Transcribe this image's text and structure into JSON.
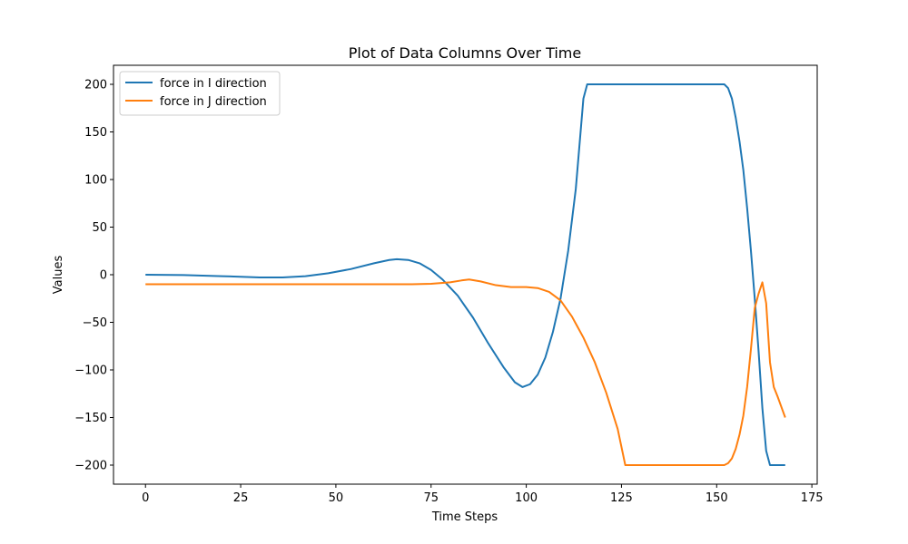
{
  "chart_data": {
    "type": "line",
    "title": "Plot of Data Columns Over Time",
    "xlabel": "Time Steps",
    "ylabel": "Values",
    "xlim": [
      -8.4,
      176.4
    ],
    "ylim": [
      -220,
      220
    ],
    "xticks": [
      0,
      25,
      50,
      75,
      100,
      125,
      150,
      175
    ],
    "yticks": [
      -200,
      -150,
      -100,
      -50,
      0,
      50,
      100,
      150,
      200
    ],
    "grid": false,
    "legend": "top-left",
    "series": [
      {
        "name": "force in I direction",
        "color": "#1f77b4",
        "points": [
          [
            0,
            0
          ],
          [
            10,
            -0.3
          ],
          [
            20,
            -1.5
          ],
          [
            30,
            -2.8
          ],
          [
            36,
            -2.8
          ],
          [
            42,
            -1.5
          ],
          [
            48,
            1.5
          ],
          [
            54,
            6
          ],
          [
            60,
            12
          ],
          [
            64,
            15.5
          ],
          [
            66,
            16.3
          ],
          [
            69,
            15.5
          ],
          [
            72,
            12
          ],
          [
            75,
            5
          ],
          [
            78,
            -5
          ],
          [
            82,
            -22
          ],
          [
            86,
            -45
          ],
          [
            90,
            -72
          ],
          [
            94,
            -97
          ],
          [
            97,
            -113
          ],
          [
            99,
            -118
          ],
          [
            101,
            -115
          ],
          [
            103,
            -105
          ],
          [
            105,
            -87
          ],
          [
            107,
            -60
          ],
          [
            109,
            -25
          ],
          [
            111,
            25
          ],
          [
            113,
            90
          ],
          [
            115,
            185
          ],
          [
            116,
            200
          ],
          [
            130,
            200
          ],
          [
            145,
            200
          ],
          [
            152,
            200
          ],
          [
            153,
            196
          ],
          [
            154,
            185
          ],
          [
            155,
            165
          ],
          [
            156,
            140
          ],
          [
            157,
            110
          ],
          [
            158,
            70
          ],
          [
            159,
            25
          ],
          [
            160,
            -25
          ],
          [
            161,
            -80
          ],
          [
            162,
            -140
          ],
          [
            163,
            -185
          ],
          [
            164,
            -200
          ],
          [
            166,
            -200
          ],
          [
            168,
            -200
          ]
        ]
      },
      {
        "name": "force in J direction",
        "color": "#ff7f0e",
        "points": [
          [
            0,
            -10
          ],
          [
            20,
            -10
          ],
          [
            40,
            -10
          ],
          [
            60,
            -10
          ],
          [
            70,
            -10
          ],
          [
            75,
            -9.5
          ],
          [
            80,
            -8
          ],
          [
            83,
            -6
          ],
          [
            85,
            -5
          ],
          [
            88,
            -7
          ],
          [
            92,
            -11
          ],
          [
            96,
            -13
          ],
          [
            100,
            -13
          ],
          [
            103,
            -14
          ],
          [
            106,
            -18
          ],
          [
            109,
            -27
          ],
          [
            112,
            -44
          ],
          [
            115,
            -66
          ],
          [
            118,
            -92
          ],
          [
            121,
            -124
          ],
          [
            124,
            -162
          ],
          [
            126,
            -200
          ],
          [
            140,
            -200
          ],
          [
            152,
            -200
          ],
          [
            153,
            -198
          ],
          [
            154,
            -193
          ],
          [
            155,
            -183
          ],
          [
            156,
            -168
          ],
          [
            157,
            -148
          ],
          [
            158,
            -118
          ],
          [
            159,
            -78
          ],
          [
            160,
            -35
          ],
          [
            161,
            -20
          ],
          [
            162,
            -8
          ],
          [
            163,
            -30
          ],
          [
            164,
            -92
          ],
          [
            165,
            -118
          ],
          [
            166,
            -128
          ],
          [
            167,
            -139
          ],
          [
            168,
            -150
          ]
        ]
      }
    ]
  }
}
